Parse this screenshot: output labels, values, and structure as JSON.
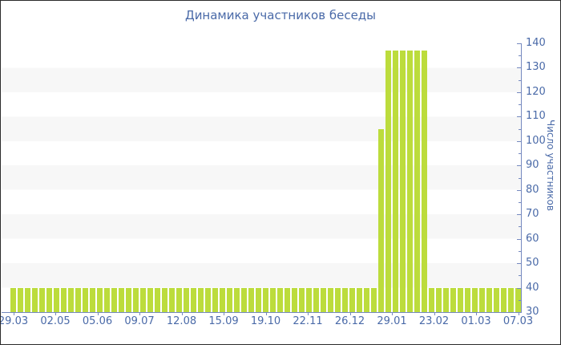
{
  "chart_data": {
    "type": "bar",
    "title": "Динамика участников беседы",
    "ylabel": "Число участников",
    "xlabel": "",
    "ylim": [
      30,
      140
    ],
    "y_major_step": 10,
    "y_minor_step": 5,
    "grid": "alternating horizontal stripes every 10 units",
    "legend": "none",
    "y_ticks": [
      30,
      40,
      50,
      60,
      70,
      80,
      90,
      100,
      110,
      120,
      130,
      140
    ],
    "x_tick_labels": [
      "29.03",
      "02.05",
      "05.06",
      "09.07",
      "12.08",
      "15.09",
      "19.10",
      "22.11",
      "26.12",
      "29.01",
      "23.02",
      "01.03",
      "07.03"
    ],
    "values": [
      40,
      40,
      40,
      40,
      40,
      40,
      40,
      40,
      40,
      40,
      40,
      40,
      40,
      40,
      40,
      40,
      40,
      40,
      40,
      40,
      40,
      40,
      40,
      40,
      40,
      40,
      40,
      40,
      40,
      40,
      40,
      40,
      40,
      40,
      40,
      40,
      40,
      40,
      40,
      40,
      40,
      40,
      40,
      40,
      40,
      40,
      40,
      40,
      40,
      40,
      40,
      105,
      137,
      137,
      137,
      137,
      137,
      137,
      40,
      40,
      40,
      40,
      40,
      40,
      40,
      40,
      40,
      40,
      40,
      40,
      40
    ],
    "colors": {
      "bar": "#bcdc3c",
      "axis_line": "#7589bf",
      "text": "#4a6aa8",
      "stripe": "#f7f7f7",
      "background": "#ffffff",
      "border": "#2b2b2b"
    }
  }
}
